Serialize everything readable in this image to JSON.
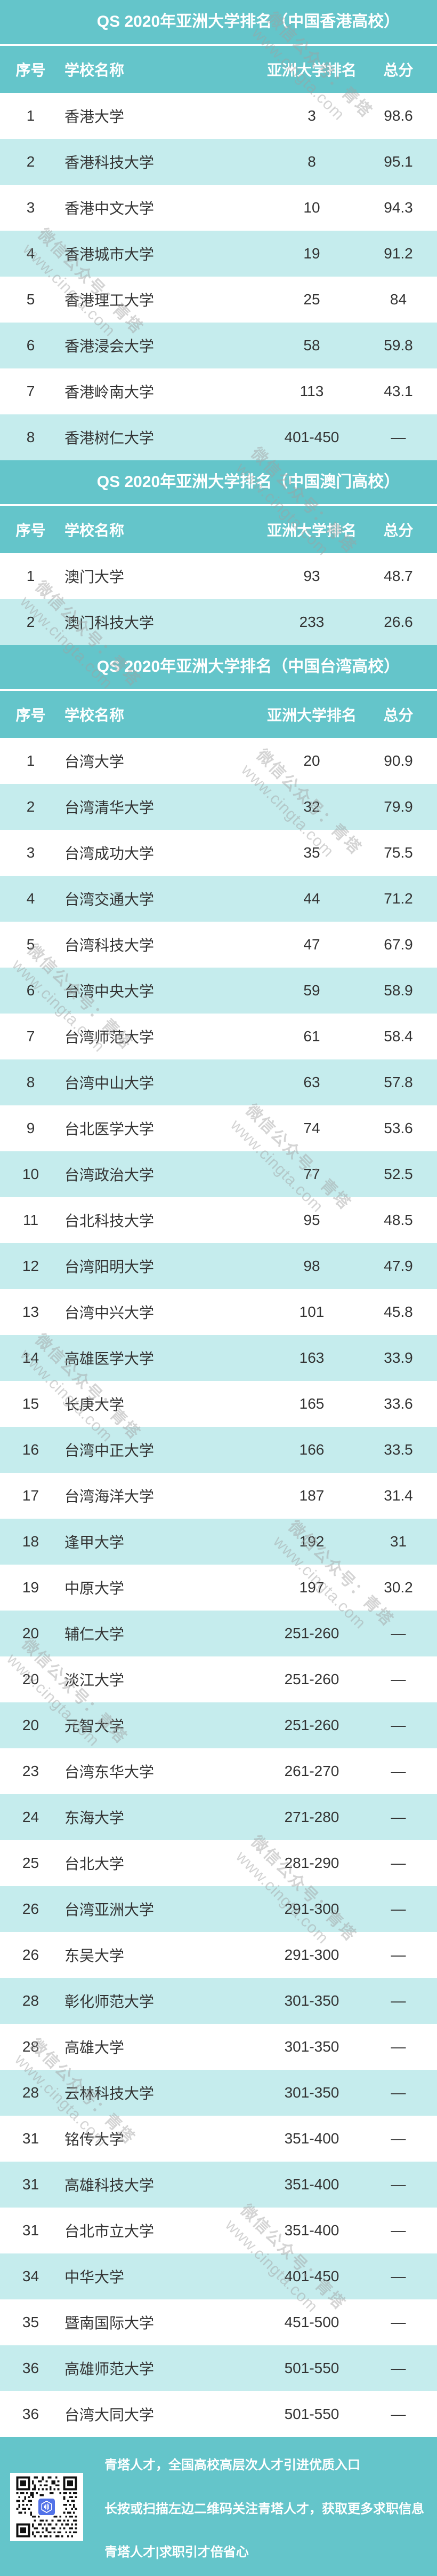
{
  "chart_data": [
    {
      "type": "table",
      "title": "QS 2020年亚洲大学排名（中国香港高校）",
      "columns": [
        "序号",
        "学校名称",
        "亚洲大学排名",
        "总分"
      ],
      "rows": [
        [
          "1",
          "香港大学",
          "3",
          "98.6"
        ],
        [
          "2",
          "香港科技大学",
          "8",
          "95.1"
        ],
        [
          "3",
          "香港中文大学",
          "10",
          "94.3"
        ],
        [
          "4",
          "香港城市大学",
          "19",
          "91.2"
        ],
        [
          "5",
          "香港理工大学",
          "25",
          "84"
        ],
        [
          "6",
          "香港浸会大学",
          "58",
          "59.8"
        ],
        [
          "7",
          "香港岭南大学",
          "113",
          "43.1"
        ],
        [
          "8",
          "香港树仁大学",
          "401-450",
          "—"
        ]
      ]
    },
    {
      "type": "table",
      "title": "QS 2020年亚洲大学排名（中国澳门高校）",
      "columns": [
        "序号",
        "学校名称",
        "亚洲大学排名",
        "总分"
      ],
      "rows": [
        [
          "1",
          "澳门大学",
          "93",
          "48.7"
        ],
        [
          "2",
          "澳门科技大学",
          "233",
          "26.6"
        ]
      ]
    },
    {
      "type": "table",
      "title": "QS 2020年亚洲大学排名（中国台湾高校）",
      "columns": [
        "序号",
        "学校名称",
        "亚洲大学排名",
        "总分"
      ],
      "rows": [
        [
          "1",
          "台湾大学",
          "20",
          "90.9"
        ],
        [
          "2",
          "台湾清华大学",
          "32",
          "79.9"
        ],
        [
          "3",
          "台湾成功大学",
          "35",
          "75.5"
        ],
        [
          "4",
          "台湾交通大学",
          "44",
          "71.2"
        ],
        [
          "5",
          "台湾科技大学",
          "47",
          "67.9"
        ],
        [
          "6",
          "台湾中央大学",
          "59",
          "58.9"
        ],
        [
          "7",
          "台湾师范大学",
          "61",
          "58.4"
        ],
        [
          "8",
          "台湾中山大学",
          "63",
          "57.8"
        ],
        [
          "9",
          "台北医学大学",
          "74",
          "53.6"
        ],
        [
          "10",
          "台湾政治大学",
          "77",
          "52.5"
        ],
        [
          "11",
          "台北科技大学",
          "95",
          "48.5"
        ],
        [
          "12",
          "台湾阳明大学",
          "98",
          "47.9"
        ],
        [
          "13",
          "台湾中兴大学",
          "101",
          "45.8"
        ],
        [
          "14",
          "高雄医学大学",
          "163",
          "33.9"
        ],
        [
          "15",
          "长庚大学",
          "165",
          "33.6"
        ],
        [
          "16",
          "台湾中正大学",
          "166",
          "33.5"
        ],
        [
          "17",
          "台湾海洋大学",
          "187",
          "31.4"
        ],
        [
          "18",
          "逢甲大学",
          "192",
          "31"
        ],
        [
          "19",
          "中原大学",
          "197",
          "30.2"
        ],
        [
          "20",
          "辅仁大学",
          "251-260",
          "—"
        ],
        [
          "20",
          "淡江大学",
          "251-260",
          "—"
        ],
        [
          "20",
          "元智大学",
          "251-260",
          "—"
        ],
        [
          "23",
          "台湾东华大学",
          "261-270",
          "—"
        ],
        [
          "24",
          "东海大学",
          "271-280",
          "—"
        ],
        [
          "25",
          "台北大学",
          "281-290",
          "—"
        ],
        [
          "26",
          "台湾亚洲大学",
          "291-300",
          "—"
        ],
        [
          "26",
          "东吴大学",
          "291-300",
          "—"
        ],
        [
          "28",
          "彰化师范大学",
          "301-350",
          "—"
        ],
        [
          "28",
          "高雄大学",
          "301-350",
          "—"
        ],
        [
          "28",
          "云林科技大学",
          "301-350",
          "—"
        ],
        [
          "31",
          "铭传大学",
          "351-400",
          "—"
        ],
        [
          "31",
          "高雄科技大学",
          "351-400",
          "—"
        ],
        [
          "31",
          "台北市立大学",
          "351-400",
          "—"
        ],
        [
          "34",
          "中华大学",
          "401-450",
          "—"
        ],
        [
          "35",
          "暨南国际大学",
          "451-500",
          "—"
        ],
        [
          "36",
          "高雄师范大学",
          "501-550",
          "—"
        ],
        [
          "36",
          "台湾大同大学",
          "501-550",
          "—"
        ]
      ]
    }
  ],
  "footer": {
    "line1": "青塔人才，全国高校高层次人才引进优质入口",
    "line2": "长按或扫描左边二维码关注青塔人才，获取更多求职信息",
    "line3": "青塔人才|求职引才倍省心"
  },
  "watermark": {
    "line1": "微信公众号：青塔",
    "line2": "www.cingta.com"
  },
  "colors": {
    "teal": "#64c5ca",
    "light_row": "#c5eced",
    "row_text": "#333333",
    "qr_icon_blue": "#5272e8"
  }
}
